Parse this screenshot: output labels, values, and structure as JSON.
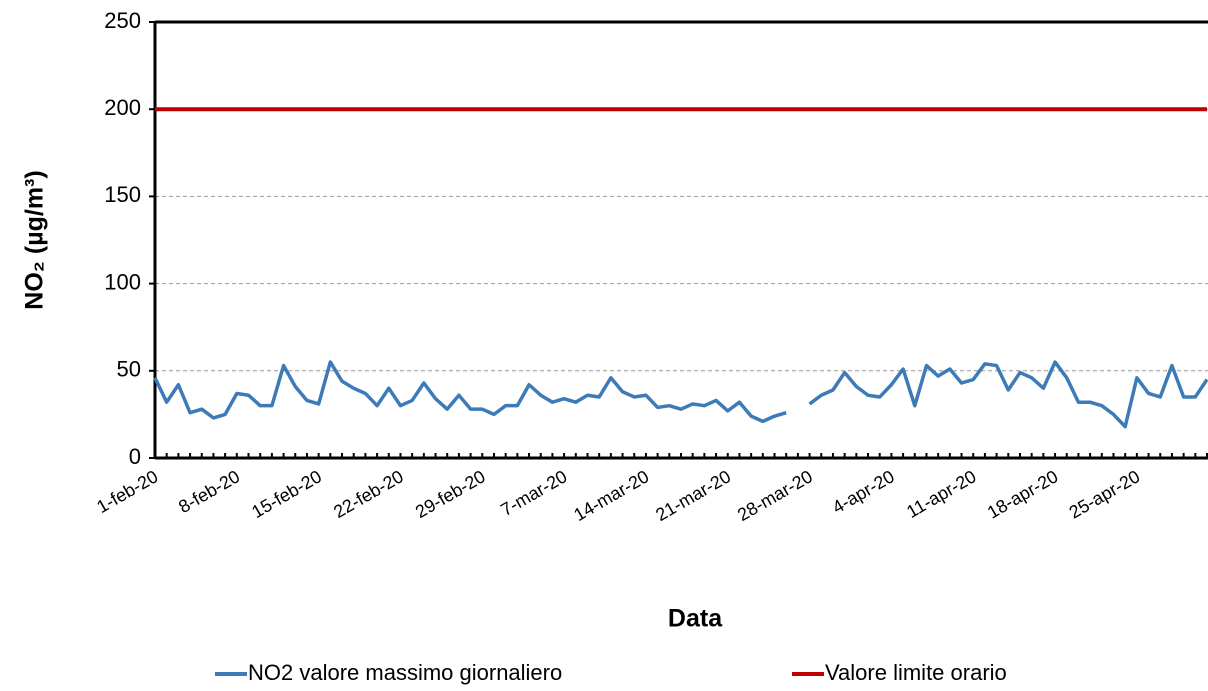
{
  "chart_data": {
    "type": "line",
    "xlabel": "Data",
    "ylabel": "NO₂ (µg/m³)",
    "categories": [
      "1-feb-20",
      null,
      null,
      null,
      null,
      null,
      null,
      "8-feb-20",
      null,
      null,
      null,
      null,
      null,
      null,
      "15-feb-20",
      null,
      null,
      null,
      null,
      null,
      null,
      "22-feb-20",
      null,
      null,
      null,
      null,
      null,
      null,
      "29-feb-20",
      null,
      null,
      null,
      null,
      null,
      null,
      "7-mar-20",
      null,
      null,
      null,
      null,
      null,
      null,
      "14-mar-20",
      null,
      null,
      null,
      null,
      null,
      null,
      "21-mar-20",
      null,
      null,
      null,
      null,
      null,
      null,
      "28-mar-20",
      null,
      null,
      null,
      null,
      null,
      null,
      "4-apr-20",
      null,
      null,
      null,
      null,
      null,
      null,
      "11-apr-20",
      null,
      null,
      null,
      null,
      null,
      null,
      "18-apr-20",
      null,
      null,
      null,
      null,
      null,
      null,
      "25-apr-20",
      null,
      null,
      null,
      null,
      null,
      null
    ],
    "series": [
      {
        "name": "NO2 valore massimo giornaliero",
        "color": "#3d7ab8",
        "values": [
          46,
          32,
          42,
          26,
          28,
          23,
          25,
          37,
          36,
          30,
          30,
          53,
          41,
          33,
          31,
          55,
          44,
          40,
          37,
          30,
          40,
          30,
          33,
          43,
          34,
          28,
          36,
          28,
          28,
          25,
          30,
          30,
          42,
          36,
          32,
          34,
          32,
          36,
          35,
          46,
          38,
          35,
          36,
          29,
          30,
          28,
          31,
          30,
          33,
          27,
          32,
          24,
          21,
          24,
          26,
          null,
          31,
          36,
          39,
          49,
          41,
          36,
          35,
          42,
          51,
          30,
          53,
          47,
          51,
          43,
          45,
          54,
          53,
          39,
          49,
          46,
          40,
          55,
          46,
          32,
          32,
          30,
          25,
          18,
          46,
          37,
          35,
          53,
          35,
          35,
          45
        ]
      },
      {
        "name": "Valore limite orario",
        "color": "#c00000",
        "values": [
          200,
          200,
          200,
          200,
          200,
          200,
          200,
          200,
          200,
          200,
          200,
          200,
          200,
          200,
          200,
          200,
          200,
          200,
          200,
          200,
          200,
          200,
          200,
          200,
          200,
          200,
          200,
          200,
          200,
          200,
          200,
          200,
          200,
          200,
          200,
          200,
          200,
          200,
          200,
          200,
          200,
          200,
          200,
          200,
          200,
          200,
          200,
          200,
          200,
          200,
          200,
          200,
          200,
          200,
          200,
          200,
          200,
          200,
          200,
          200,
          200,
          200,
          200,
          200,
          200,
          200,
          200,
          200,
          200,
          200,
          200,
          200,
          200,
          200,
          200,
          200,
          200,
          200,
          200,
          200,
          200,
          200,
          200,
          200,
          200,
          200,
          200,
          200,
          200,
          200,
          200
        ]
      }
    ],
    "ylim": [
      0,
      250
    ],
    "yticks": [
      0,
      50,
      100,
      150,
      200,
      250
    ],
    "grid": true,
    "legend": "bottom"
  }
}
